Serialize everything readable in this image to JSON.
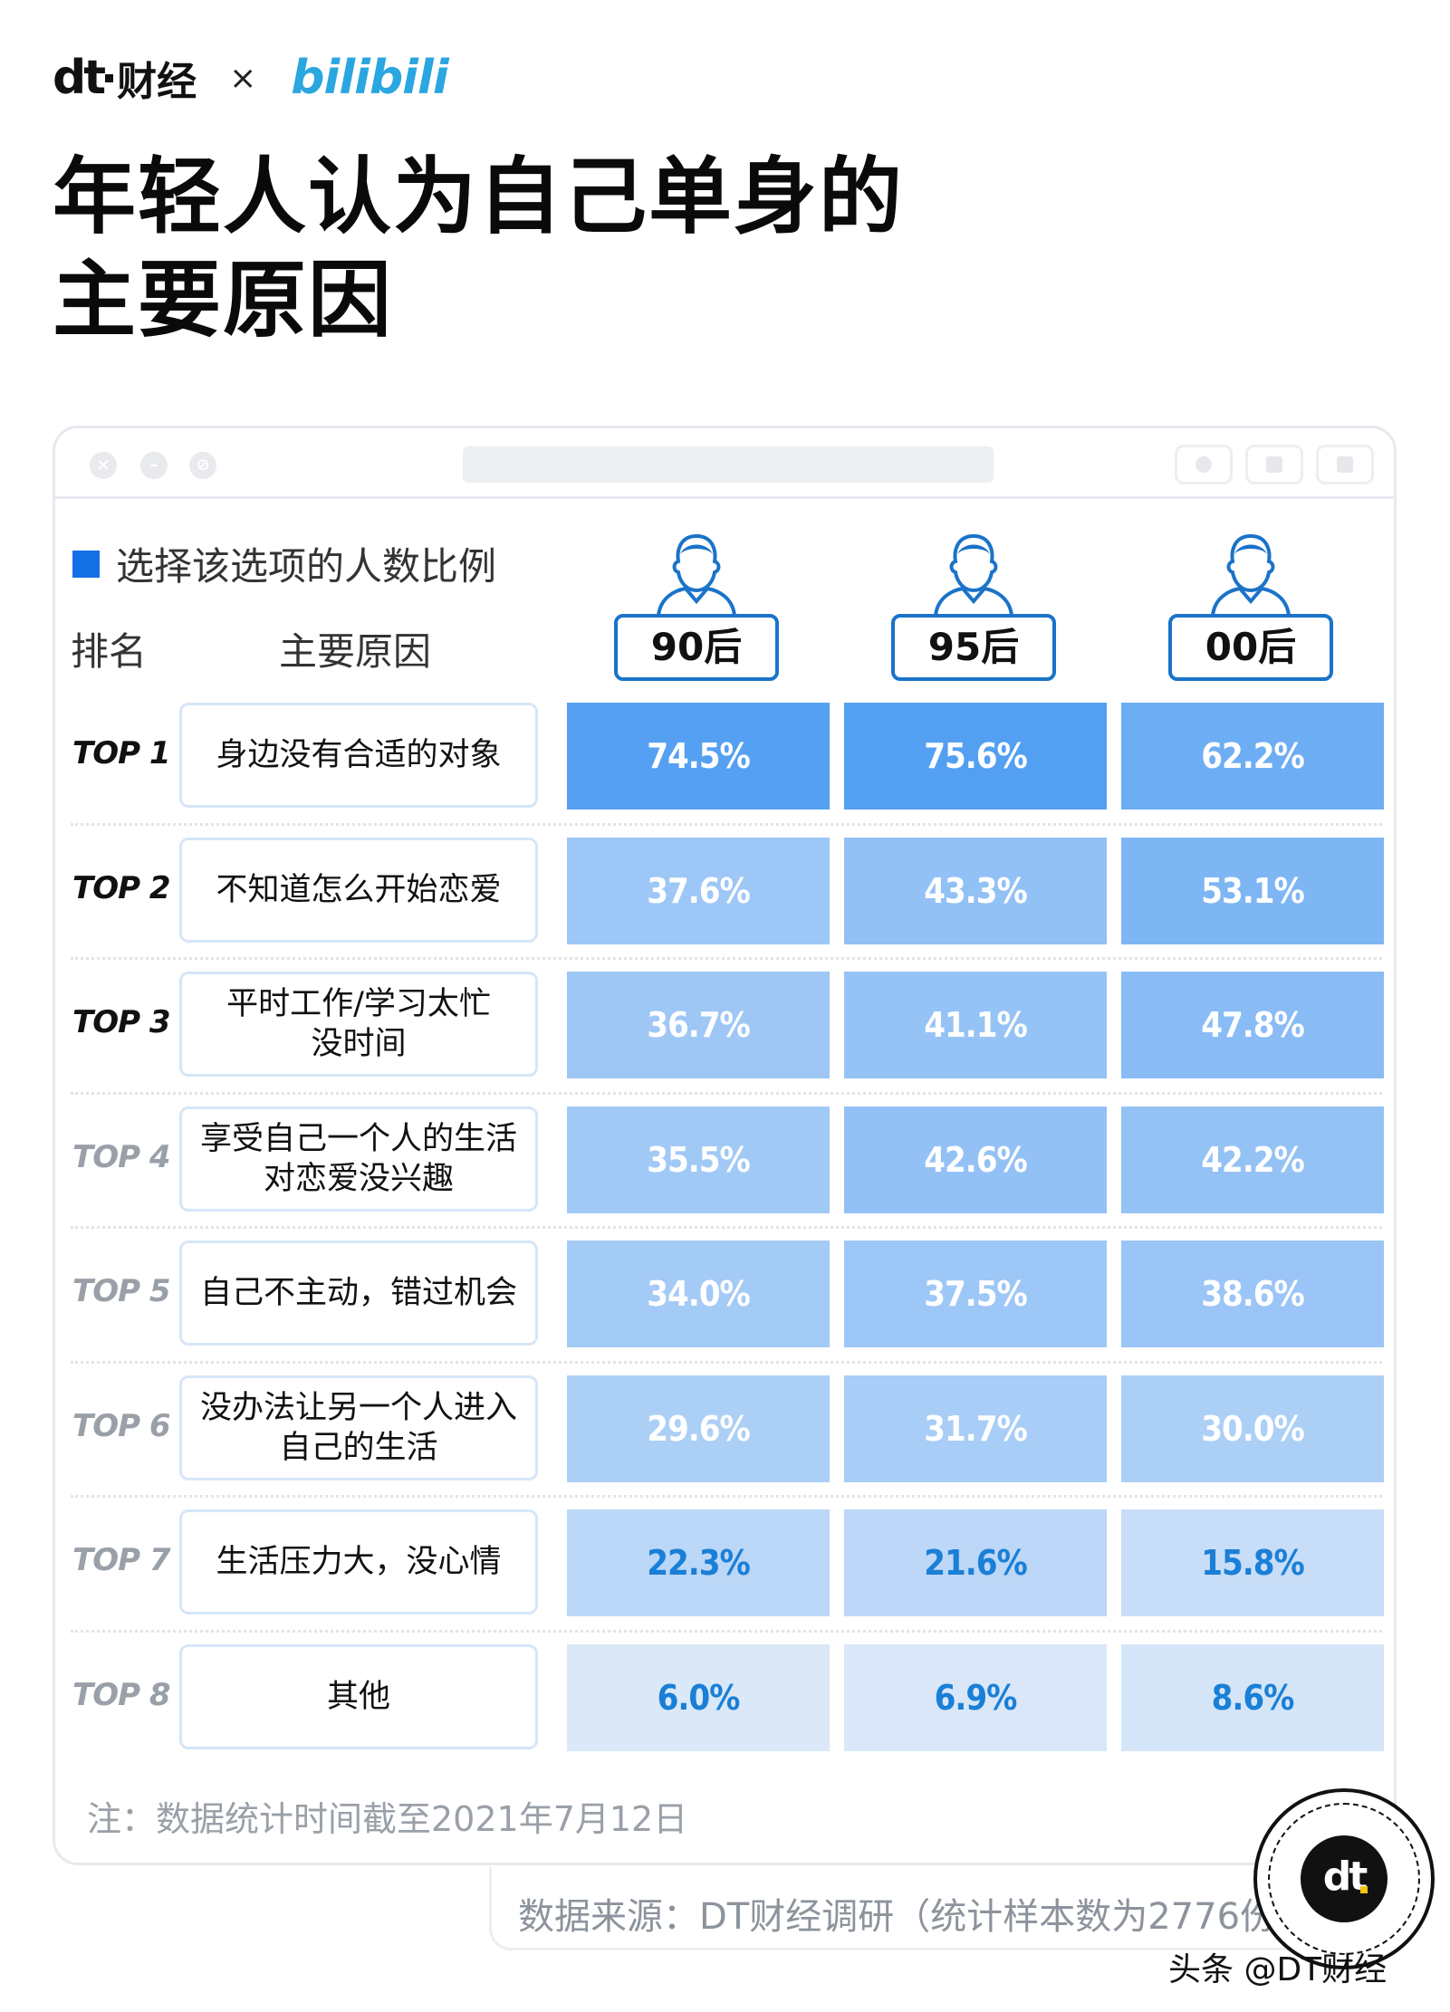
{
  "brand": {
    "dt_logo": "dt",
    "dt_name": "财经",
    "times": "×",
    "partner": "bilibili"
  },
  "title_line1": "年轻人认为自己单身的",
  "title_line2": "主要原因",
  "legend": "选择该选项的人数比例",
  "headers": {
    "rank": "排名",
    "reason": "主要原因"
  },
  "generations": [
    "90后",
    "95后",
    "00后"
  ],
  "colors": {
    "accent": "#1570e6",
    "dark_text": "#111111",
    "light_text": "#ffffff",
    "blue_text": "#1a7fd6",
    "rank_dim": "#9aa0a8"
  },
  "chart_data": {
    "type": "table",
    "title": "年轻人认为自己单身的主要原因",
    "series": [
      {
        "name": "90后",
        "values": [
          74.5,
          37.6,
          36.7,
          35.5,
          34.0,
          29.6,
          22.3,
          6.0
        ]
      },
      {
        "name": "95后",
        "values": [
          75.6,
          43.3,
          41.1,
          42.6,
          37.5,
          31.7,
          21.6,
          6.9
        ]
      },
      {
        "name": "00后",
        "values": [
          62.2,
          53.1,
          47.8,
          42.2,
          38.6,
          30.0,
          15.8,
          8.6
        ]
      }
    ],
    "rows": [
      {
        "rank": "TOP 1",
        "reason": "身边没有合适的对象",
        "cells": [
          "74.5%",
          "75.6%",
          "62.2%"
        ]
      },
      {
        "rank": "TOP 2",
        "reason": "不知道怎么开始恋爱",
        "cells": [
          "37.6%",
          "43.3%",
          "53.1%"
        ]
      },
      {
        "rank": "TOP 3",
        "reason": "平时工作/学习太忙\n没时间",
        "cells": [
          "36.7%",
          "41.1%",
          "47.8%"
        ]
      },
      {
        "rank": "TOP 4",
        "reason": "享受自己一个人的生活\n对恋爱没兴趣",
        "cells": [
          "35.5%",
          "42.6%",
          "42.2%"
        ]
      },
      {
        "rank": "TOP 5",
        "reason": "自己不主动，错过机会",
        "cells": [
          "34.0%",
          "37.5%",
          "38.6%"
        ]
      },
      {
        "rank": "TOP 6",
        "reason": "没办法让另一个人进入\n自己的生活",
        "cells": [
          "29.6%",
          "31.7%",
          "30.0%"
        ]
      },
      {
        "rank": "TOP 7",
        "reason": "生活压力大，没心情",
        "cells": [
          "22.3%",
          "21.6%",
          "15.8%"
        ]
      },
      {
        "rank": "TOP 8",
        "reason": "其他",
        "cells": [
          "6.0%",
          "6.9%",
          "8.6%"
        ]
      }
    ]
  },
  "note": "注：数据统计时间截至2021年7月12日",
  "source": "数据来源：DT财经调研（统计样本数为2776份）",
  "badge": "dt",
  "footer_watermark": "头条 @DT财经"
}
